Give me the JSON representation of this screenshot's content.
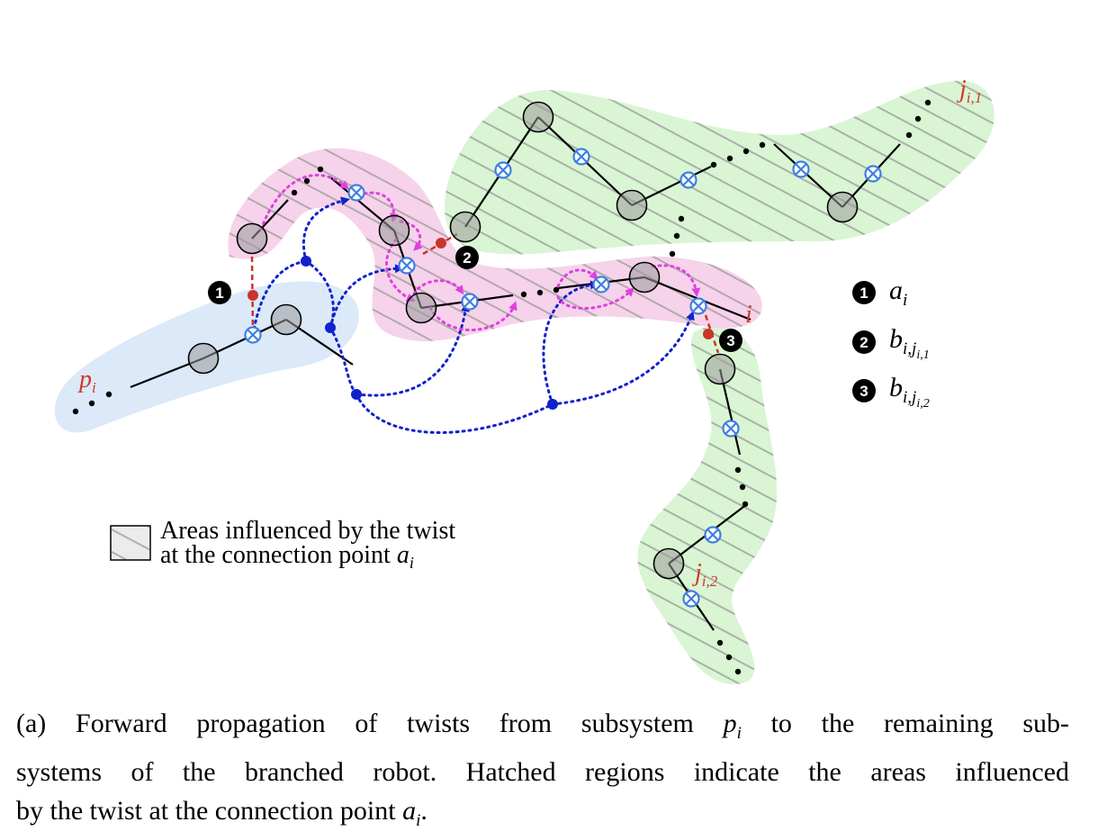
{
  "labels": {
    "p": "p",
    "p_sub": "i",
    "i": "i",
    "j1": "j",
    "j1_sub": "i,1",
    "j2": "j",
    "j2_sub": "i,2"
  },
  "key": [
    {
      "badge": "1",
      "symbol": "a",
      "sub": "i",
      "subsub": ""
    },
    {
      "badge": "2",
      "symbol": "b",
      "sub": "i,j",
      "subsub": "i,1"
    },
    {
      "badge": "3",
      "symbol": "b",
      "sub": "i,j",
      "subsub": "i,2"
    }
  ],
  "legend": {
    "line1": "Areas influenced by the twist",
    "line2": "at the connection point",
    "math": "a",
    "math_sub": "i"
  },
  "caption": {
    "line1": "(a) Forward propagation of twists from subsystem p_i to the remaining sub-",
    "line1_a": "(a) Forward propagation of twists from subsystem ",
    "line1_math": "p",
    "line1_sub": "i",
    "line1_b": " to the remaining sub-",
    "line2": "systems of the branched robot. Hatched regions indicate the areas influenced",
    "line3_a": "by the twist at the connection point ",
    "line3_math": "a",
    "line3_sub": "i",
    "line3_b": "."
  },
  "colors": {
    "blue_region": "#dbe9f8",
    "pink_region": "#f6d3ea",
    "green_region": "#d9f5d3",
    "hatch": "#9a9a9a",
    "blue_arrow": "#1122cc",
    "magenta_arrow": "#e040e0",
    "red": "#c8352a",
    "joint_icon": "#3d7fe0"
  }
}
